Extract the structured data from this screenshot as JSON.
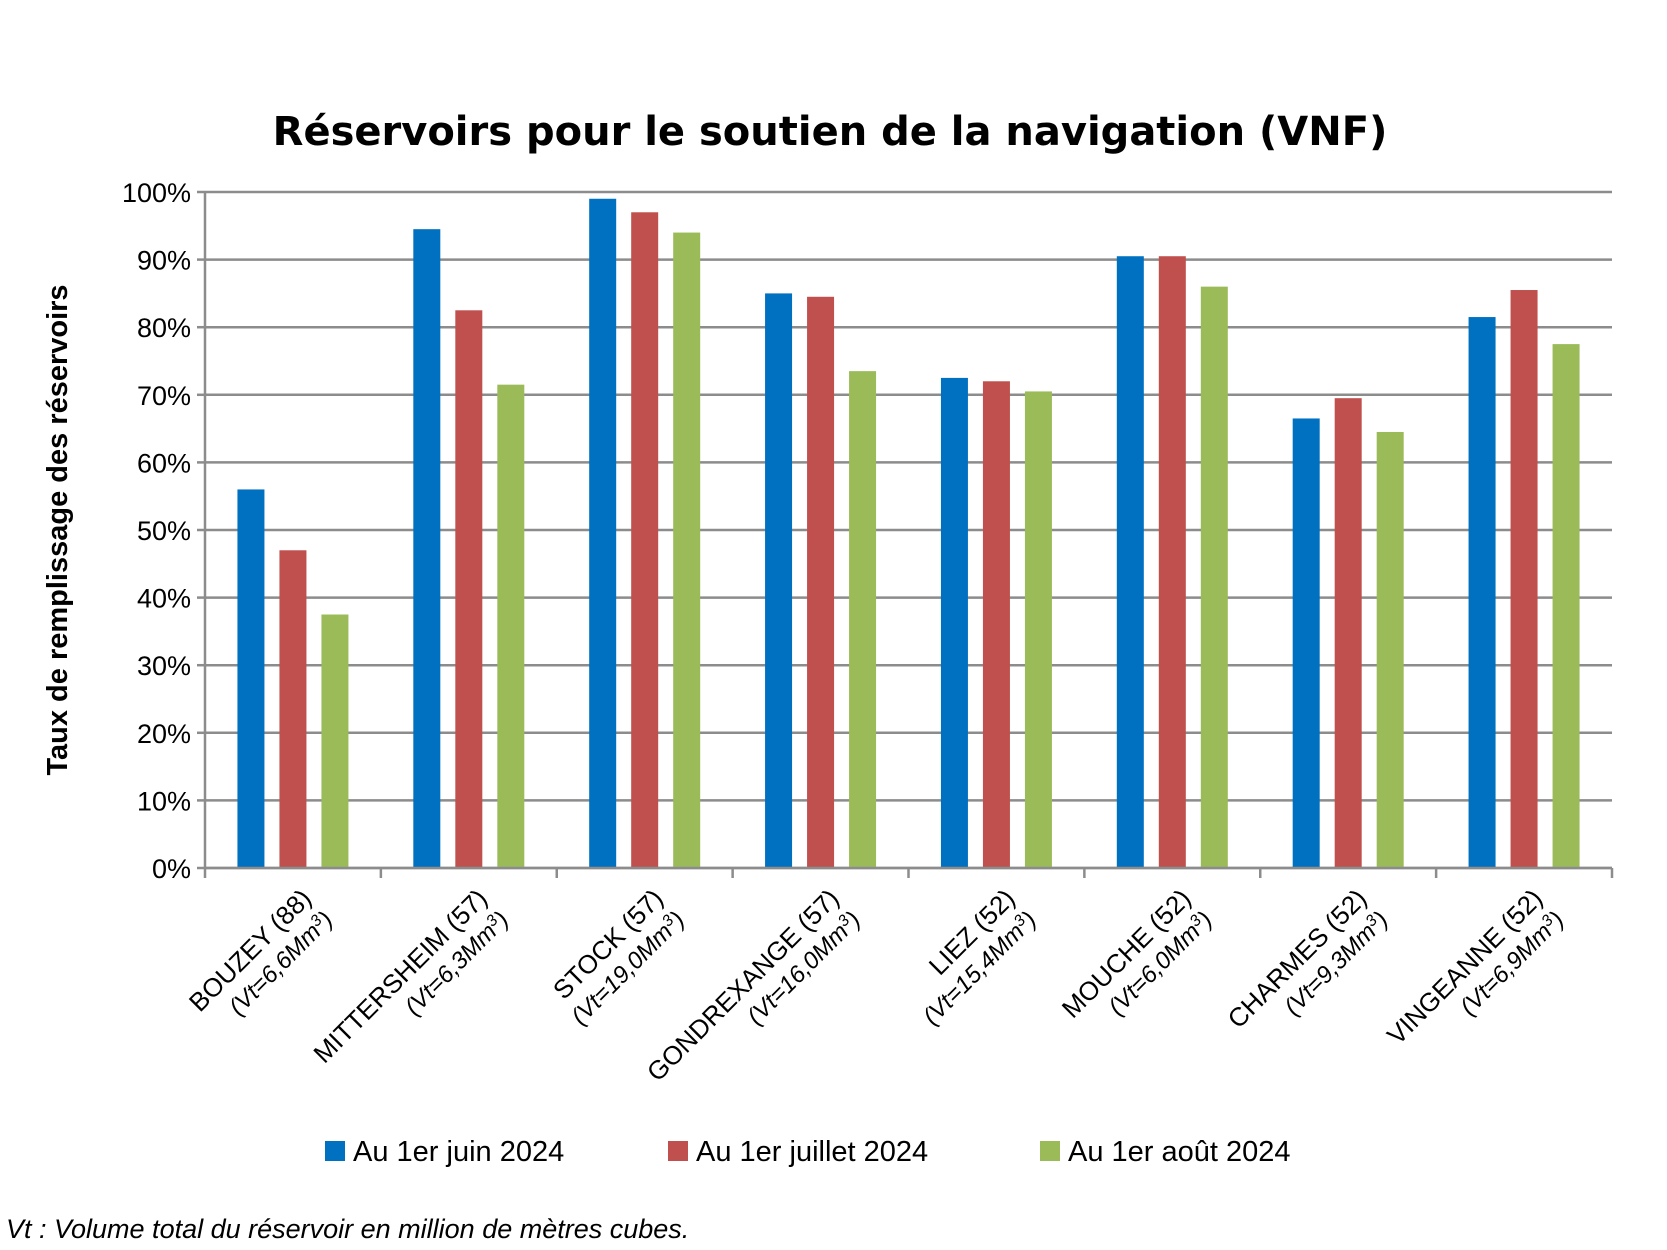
{
  "chart_data": {
    "type": "bar",
    "title": "Réservoirs pour le soutien de la navigation (VNF)",
    "ylabel": "Taux de remplissage des réservoirs",
    "xlabel": "",
    "ylim": [
      0,
      100
    ],
    "yticks": [
      "0%",
      "10%",
      "20%",
      "30%",
      "40%",
      "50%",
      "60%",
      "70%",
      "80%",
      "90%",
      "100%"
    ],
    "grid": true,
    "legend_position": "bottom",
    "categories": [
      {
        "name": "BOUZEY (88)",
        "volume": "(Vt=6,6Mm",
        "sup": "3",
        "close": ")"
      },
      {
        "name": "MITTERSHEIM (57)",
        "volume": "(Vt=6,3Mm",
        "sup": "3",
        "close": ")"
      },
      {
        "name": "STOCK (57)",
        "volume": "(Vt=19,0Mm",
        "sup": "3",
        "close": ")"
      },
      {
        "name": "GONDREXANGE (57)",
        "volume": "(Vt=16,0Mm",
        "sup": "3",
        "close": ")"
      },
      {
        "name": "LIEZ (52)",
        "volume": "(Vt=15,4Mm",
        "sup": "3",
        "close": ")"
      },
      {
        "name": "MOUCHE (52)",
        "volume": "(Vt=6,0Mm",
        "sup": "3",
        "close": ")"
      },
      {
        "name": "CHARMES (52)",
        "volume": "(Vt=9,3Mm",
        "sup": "3",
        "close": ")"
      },
      {
        "name": "VINGEANNE (52)",
        "volume": "(Vt=6,9Mm",
        "sup": "3",
        "close": ")"
      }
    ],
    "series": [
      {
        "name": "Au 1er juin 2024",
        "color": "#0070C0",
        "values": [
          56,
          94.5,
          99,
          85,
          72.5,
          90.5,
          66.5,
          81.5
        ]
      },
      {
        "name": "Au 1er juillet 2024",
        "color": "#C0504D",
        "values": [
          47,
          82.5,
          97,
          84.5,
          72,
          90.5,
          69.5,
          85.5
        ]
      },
      {
        "name": "Au 1er août 2024",
        "color": "#9BBB59",
        "values": [
          37.5,
          71.5,
          94,
          73.5,
          70.5,
          86,
          64.5,
          77.5
        ]
      }
    ],
    "footnote": "Vt : Volume total du réservoir en million de mètres cubes."
  }
}
